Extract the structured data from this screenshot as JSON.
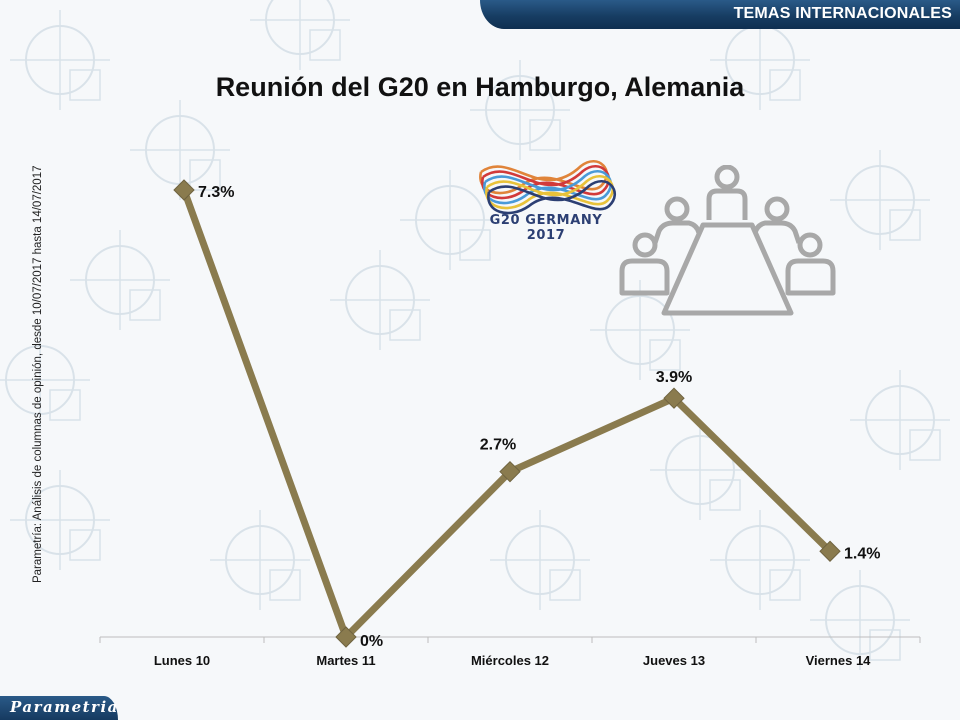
{
  "header": {
    "section_label": "TEMAS INTERNACIONALES"
  },
  "footer": {
    "brand": "Parametria"
  },
  "source_note": "Parametría: Análisis de columnas de opinión, desde 10/07/2017 hasta 14/07/2017",
  "g20_logo": {
    "text": "G20 GERMANY 2017"
  },
  "icons": {
    "meeting": "meeting-table-icon"
  },
  "colors": {
    "line": "#8a7b4e",
    "header_bar": "#1a416a",
    "icon": "#a8a8a8"
  },
  "chart_data": {
    "type": "line",
    "title": "Reunión del G20 en Hamburgo, Alemania",
    "xlabel": "",
    "ylabel": "",
    "categories": [
      "Lunes 10",
      "Martes 11",
      "Miércoles 12",
      "Jueves 13",
      "Viernes 14"
    ],
    "values": [
      7.3,
      0,
      2.7,
      3.9,
      1.4
    ],
    "data_labels": [
      "7.3%",
      "0%",
      "2.7%",
      "3.9%",
      "1.4%"
    ],
    "ylim": [
      0,
      7.3
    ],
    "grid": false,
    "legend": "none"
  }
}
